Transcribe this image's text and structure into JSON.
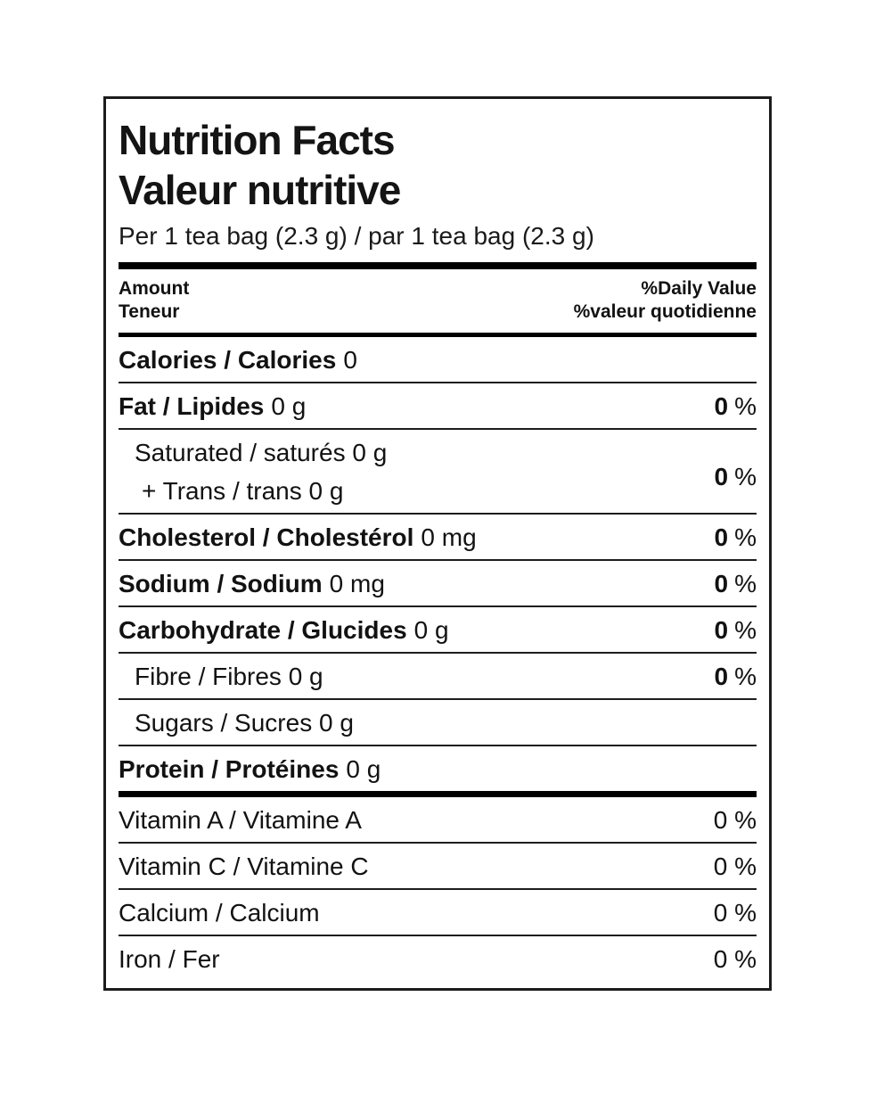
{
  "label": {
    "title_en": "Nutrition Facts",
    "title_fr": "Valeur nutritive",
    "serving": "Per 1 tea bag (2.3 g) / par 1 tea bag (2.3 g)",
    "header": {
      "amount_en": "Amount",
      "amount_fr": "Teneur",
      "daily_value_en": "%Daily Value",
      "daily_value_fr": "%valeur quotidienne"
    },
    "rows": {
      "calories": {
        "name": "Calories / Calories",
        "value": "0"
      },
      "fat": {
        "name": "Fat / Lipides",
        "value": "0 g",
        "dv": "0",
        "pct": "%"
      },
      "saturated": {
        "line1": "Saturated / saturés 0 g",
        "line2": "+ Trans / trans 0 g",
        "dv": "0",
        "pct": "%"
      },
      "cholesterol": {
        "name": "Cholesterol / Cholestérol",
        "value": "0 mg",
        "dv": "0",
        "pct": "%"
      },
      "sodium": {
        "name": "Sodium / Sodium",
        "value": "0 mg",
        "dv": "0",
        "pct": "%"
      },
      "carbohydrate": {
        "name": "Carbohydrate / Glucides",
        "value": "0 g",
        "dv": "0",
        "pct": "%"
      },
      "fibre": {
        "name": "Fibre / Fibres 0 g",
        "dv": "0",
        "pct": "%"
      },
      "sugars": {
        "name": "Sugars / Sucres 0 g"
      },
      "protein": {
        "name": "Protein / Protéines",
        "value": "0 g"
      },
      "vitamin_a": {
        "name": "Vitamin A / Vitamine A",
        "dv": "0 %"
      },
      "vitamin_c": {
        "name": "Vitamin C / Vitamine C",
        "dv": "0 %"
      },
      "calcium": {
        "name": "Calcium / Calcium",
        "dv": "0 %"
      },
      "iron": {
        "name": "Iron / Fer",
        "dv": "0 %"
      }
    },
    "colors": {
      "text": "#121212",
      "rule": "#000000",
      "background": "#ffffff"
    }
  }
}
